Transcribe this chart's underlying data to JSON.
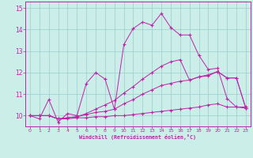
{
  "xlabel": "Windchill (Refroidissement éolien,°C)",
  "background_color": "#cceee8",
  "line_color": "#bb22aa",
  "grid_color": "#99cccc",
  "xlim": [
    -0.5,
    23.5
  ],
  "ylim": [
    9.5,
    15.3
  ],
  "yticks": [
    10,
    11,
    12,
    13,
    14,
    15
  ],
  "xticks": [
    0,
    1,
    2,
    3,
    4,
    5,
    6,
    7,
    8,
    9,
    10,
    11,
    12,
    13,
    14,
    15,
    16,
    17,
    18,
    19,
    20,
    21,
    22,
    23
  ],
  "series": [
    [
      10.0,
      9.85,
      10.75,
      9.7,
      10.1,
      10.0,
      11.5,
      12.0,
      11.7,
      10.3,
      13.3,
      14.05,
      14.35,
      14.2,
      14.75,
      14.1,
      13.75,
      13.75,
      12.8,
      12.15,
      12.2,
      10.8,
      10.4,
      10.4
    ],
    [
      10.0,
      10.0,
      10.0,
      9.85,
      9.85,
      9.9,
      9.9,
      9.95,
      9.95,
      10.0,
      10.0,
      10.05,
      10.1,
      10.15,
      10.2,
      10.25,
      10.3,
      10.35,
      10.4,
      10.5,
      10.55,
      10.4,
      10.4,
      10.35
    ],
    [
      10.0,
      10.0,
      10.0,
      9.85,
      9.9,
      9.95,
      10.05,
      10.15,
      10.2,
      10.3,
      10.55,
      10.75,
      11.0,
      11.2,
      11.4,
      11.5,
      11.6,
      11.65,
      11.8,
      11.9,
      12.05,
      11.75,
      11.75,
      10.35
    ],
    [
      10.0,
      10.0,
      10.0,
      9.85,
      9.9,
      9.95,
      10.1,
      10.3,
      10.5,
      10.7,
      11.05,
      11.35,
      11.7,
      12.0,
      12.3,
      12.5,
      12.6,
      11.65,
      11.8,
      11.85,
      12.05,
      11.75,
      11.75,
      10.35
    ]
  ]
}
